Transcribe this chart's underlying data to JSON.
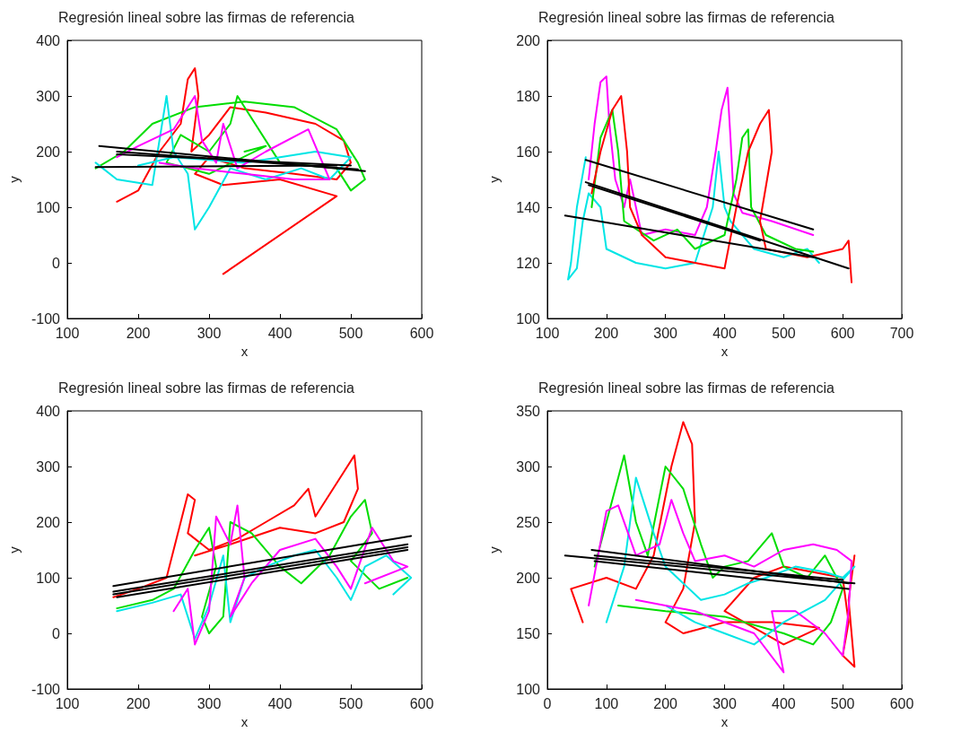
{
  "chart_data": [
    {
      "type": "line",
      "title": "Regresión lineal sobre las firmas de referencia",
      "xlabel": "x",
      "ylabel": "y",
      "xlim": [
        100,
        600
      ],
      "xticks": [
        100,
        200,
        300,
        400,
        500,
        600
      ],
      "ylim": [
        -100,
        400
      ],
      "yticks": [
        -100,
        0,
        100,
        200,
        300,
        400
      ],
      "marker": "none",
      "series": [
        {
          "color": "#ff0000",
          "x": [
            170,
            200,
            230,
            260,
            270,
            280,
            285,
            275,
            300,
            330,
            380,
            450,
            490,
            500,
            480,
            420,
            350,
            300,
            280,
            320,
            400,
            480,
            320
          ],
          "values": [
            110,
            130,
            200,
            250,
            330,
            350,
            300,
            200,
            230,
            280,
            270,
            250,
            220,
            180,
            150,
            160,
            170,
            190,
            160,
            140,
            150,
            120,
            -20
          ]
        },
        {
          "color": "#00dd00",
          "x": [
            140,
            180,
            220,
            280,
            350,
            420,
            480,
            510,
            520,
            500,
            480,
            400,
            340,
            330,
            300,
            260,
            240,
            300,
            380,
            350
          ],
          "values": [
            170,
            200,
            250,
            280,
            290,
            280,
            240,
            180,
            150,
            130,
            170,
            180,
            300,
            250,
            200,
            230,
            180,
            160,
            210,
            200
          ]
        },
        {
          "color": "#00e5e5",
          "x": [
            140,
            170,
            220,
            240,
            250,
            270,
            280,
            300,
            330,
            380,
            430,
            470,
            500,
            450,
            350,
            250,
            200
          ],
          "values": [
            180,
            150,
            140,
            300,
            200,
            160,
            60,
            100,
            170,
            150,
            170,
            150,
            190,
            200,
            180,
            190,
            175
          ]
        },
        {
          "color": "#ff00ff",
          "x": [
            170,
            200,
            250,
            280,
            290,
            310,
            320,
            340,
            380,
            440,
            460,
            470,
            420,
            350,
            280,
            230
          ],
          "values": [
            190,
            210,
            240,
            300,
            220,
            180,
            250,
            170,
            200,
            240,
            180,
            150,
            150,
            160,
            170,
            180
          ]
        },
        {
          "color": "#000000",
          "x": [
            145,
            520
          ],
          "values": [
            210,
            165
          ]
        },
        {
          "color": "#000000",
          "x": [
            140,
            480
          ],
          "values": [
            172,
            175
          ]
        },
        {
          "color": "#000000",
          "x": [
            170,
            500
          ],
          "values": [
            195,
            175
          ]
        },
        {
          "color": "#000000",
          "x": [
            170,
            510
          ],
          "values": [
            200,
            168
          ]
        }
      ]
    },
    {
      "type": "line",
      "title": "Regresión lineal sobre las firmas de referencia",
      "xlabel": "x",
      "ylabel": "y",
      "xlim": [
        100,
        700
      ],
      "xticks": [
        100,
        200,
        300,
        400,
        500,
        600,
        700
      ],
      "ylim": [
        100,
        200
      ],
      "yticks": [
        100,
        120,
        140,
        160,
        180,
        200
      ],
      "marker": "none",
      "series": [
        {
          "color": "#00e5e5",
          "x": [
            165,
            150,
            140,
            135,
            150,
            160,
            170,
            190,
            200,
            250,
            300,
            350,
            380,
            390,
            400,
            410,
            450,
            500,
            540,
            560
          ],
          "values": [
            158,
            140,
            120,
            114,
            118,
            135,
            145,
            140,
            125,
            120,
            118,
            120,
            140,
            160,
            140,
            135,
            125,
            122,
            125,
            120
          ]
        },
        {
          "color": "#ff00ff",
          "x": [
            170,
            180,
            190,
            200,
            205,
            215,
            230,
            240,
            260,
            300,
            350,
            370,
            385,
            395,
            405,
            410,
            415,
            430,
            480,
            550
          ],
          "values": [
            150,
            170,
            185,
            187,
            170,
            150,
            140,
            150,
            130,
            132,
            130,
            140,
            160,
            175,
            183,
            165,
            145,
            138,
            135,
            130
          ]
        },
        {
          "color": "#00dd00",
          "x": [
            175,
            190,
            210,
            220,
            230,
            280,
            320,
            350,
            400,
            420,
            430,
            440,
            445,
            470,
            520,
            550
          ],
          "values": [
            140,
            165,
            175,
            160,
            135,
            128,
            132,
            125,
            130,
            150,
            165,
            168,
            140,
            130,
            125,
            124
          ]
        },
        {
          "color": "#ff0000",
          "x": [
            175,
            190,
            210,
            225,
            235,
            240,
            260,
            300,
            350,
            400,
            420,
            440,
            460,
            475,
            480,
            460,
            470,
            540,
            600,
            610,
            615
          ],
          "values": [
            145,
            160,
            175,
            180,
            160,
            140,
            130,
            122,
            120,
            118,
            140,
            160,
            170,
            175,
            160,
            135,
            125,
            122,
            125,
            128,
            113
          ]
        },
        {
          "color": "#000000",
          "x": [
            165,
            550
          ],
          "values": [
            157,
            132
          ]
        },
        {
          "color": "#000000",
          "x": [
            165,
            610
          ],
          "values": [
            149,
            118
          ]
        },
        {
          "color": "#000000",
          "x": [
            130,
            550
          ],
          "values": [
            137,
            122
          ]
        },
        {
          "color": "#000000",
          "x": [
            170,
            460
          ],
          "values": [
            148,
            128
          ]
        }
      ]
    },
    {
      "type": "line",
      "title": "Regresión lineal sobre las firmas de referencia",
      "xlabel": "x",
      "ylabel": "y",
      "xlim": [
        100,
        600
      ],
      "xticks": [
        100,
        200,
        300,
        400,
        500,
        600
      ],
      "ylim": [
        -100,
        400
      ],
      "yticks": [
        -100,
        0,
        100,
        200,
        300,
        400
      ],
      "marker": "none",
      "series": [
        {
          "color": "#ff0000",
          "x": [
            165,
            200,
            240,
            260,
            270,
            280,
            270,
            300,
            340,
            380,
            420,
            440,
            450,
            470,
            490,
            505,
            510,
            490,
            450,
            400,
            330,
            280
          ],
          "values": [
            65,
            80,
            100,
            200,
            250,
            240,
            180,
            150,
            170,
            200,
            230,
            260,
            210,
            250,
            290,
            320,
            260,
            200,
            180,
            190,
            160,
            140
          ]
        },
        {
          "color": "#00dd00",
          "x": [
            170,
            220,
            250,
            280,
            300,
            310,
            290,
            300,
            320,
            330,
            360,
            400,
            430,
            470,
            500,
            520,
            530,
            500,
            540,
            580
          ],
          "values": [
            45,
            60,
            80,
            150,
            190,
            120,
            30,
            0,
            30,
            200,
            180,
            120,
            90,
            140,
            210,
            240,
            180,
            130,
            80,
            100
          ]
        },
        {
          "color": "#00e5e5",
          "x": [
            170,
            220,
            260,
            280,
            300,
            320,
            330,
            350,
            380,
            420,
            450,
            480,
            500,
            520,
            550,
            585,
            560
          ],
          "values": [
            40,
            55,
            70,
            -10,
            50,
            140,
            20,
            100,
            120,
            140,
            150,
            100,
            60,
            120,
            140,
            100,
            70
          ]
        },
        {
          "color": "#ff00ff",
          "x": [
            250,
            270,
            280,
            300,
            310,
            330,
            340,
            350,
            330,
            360,
            400,
            450,
            480,
            500,
            530,
            560,
            580,
            520
          ],
          "values": [
            40,
            80,
            -20,
            40,
            210,
            160,
            230,
            100,
            30,
            90,
            150,
            170,
            120,
            80,
            190,
            130,
            120,
            90
          ]
        },
        {
          "color": "#000000",
          "x": [
            165,
            585
          ],
          "values": [
            85,
            175
          ]
        },
        {
          "color": "#000000",
          "x": [
            165,
            580
          ],
          "values": [
            70,
            155
          ]
        },
        {
          "color": "#000000",
          "x": [
            170,
            580
          ],
          "values": [
            65,
            150
          ]
        },
        {
          "color": "#000000",
          "x": [
            165,
            580
          ],
          "values": [
            75,
            160
          ]
        }
      ]
    },
    {
      "type": "line",
      "title": "Regresión lineal sobre las firmas de referencia",
      "xlabel": "x",
      "ylabel": "y",
      "xlim": [
        0,
        600
      ],
      "xticks": [
        0,
        100,
        200,
        300,
        400,
        500,
        600
      ],
      "ylim": [
        100,
        350
      ],
      "yticks": [
        100,
        150,
        200,
        250,
        300,
        350
      ],
      "marker": "none",
      "series": [
        {
          "color": "#ff0000",
          "x": [
            60,
            40,
            100,
            150,
            180,
            210,
            230,
            245,
            250,
            230,
            200,
            230,
            300,
            380,
            460,
            400,
            300,
            350,
            400,
            450,
            500,
            510,
            500,
            520,
            510,
            520
          ],
          "values": [
            160,
            190,
            200,
            190,
            220,
            300,
            340,
            320,
            250,
            190,
            160,
            150,
            160,
            160,
            155,
            140,
            170,
            200,
            210,
            205,
            200,
            160,
            130,
            120,
            180,
            220
          ]
        },
        {
          "color": "#00dd00",
          "x": [
            80,
            110,
            130,
            150,
            170,
            200,
            230,
            260,
            280,
            300,
            340,
            380,
            400,
            440,
            470,
            500,
            480,
            450,
            400,
            300,
            200,
            120
          ],
          "values": [
            210,
            270,
            310,
            250,
            220,
            300,
            280,
            230,
            200,
            210,
            215,
            240,
            210,
            200,
            220,
            190,
            160,
            140,
            150,
            165,
            170,
            175
          ]
        },
        {
          "color": "#00e5e5",
          "x": [
            100,
            130,
            150,
            180,
            200,
            220,
            260,
            300,
            340,
            370,
            420,
            470,
            500,
            520,
            470,
            400,
            350,
            300,
            250,
            200
          ],
          "values": [
            160,
            210,
            290,
            240,
            210,
            200,
            180,
            185,
            195,
            200,
            210,
            205,
            200,
            210,
            180,
            160,
            140,
            150,
            160,
            175
          ]
        },
        {
          "color": "#ff00ff",
          "x": [
            70,
            100,
            120,
            150,
            190,
            210,
            230,
            250,
            300,
            350,
            400,
            450,
            490,
            515,
            510,
            500,
            470,
            420,
            380,
            400,
            350,
            250,
            150
          ],
          "values": [
            175,
            260,
            265,
            220,
            230,
            270,
            240,
            215,
            220,
            210,
            225,
            230,
            225,
            215,
            170,
            130,
            150,
            170,
            170,
            115,
            150,
            170,
            180
          ]
        },
        {
          "color": "#000000",
          "x": [
            30,
            520
          ],
          "values": [
            220,
            195
          ]
        },
        {
          "color": "#000000",
          "x": [
            75,
            510
          ],
          "values": [
            225,
            195
          ]
        },
        {
          "color": "#000000",
          "x": [
            80,
            510
          ],
          "values": [
            215,
            190
          ]
        },
        {
          "color": "#000000",
          "x": [
            80,
            500
          ],
          "values": [
            220,
            198
          ]
        }
      ]
    }
  ]
}
